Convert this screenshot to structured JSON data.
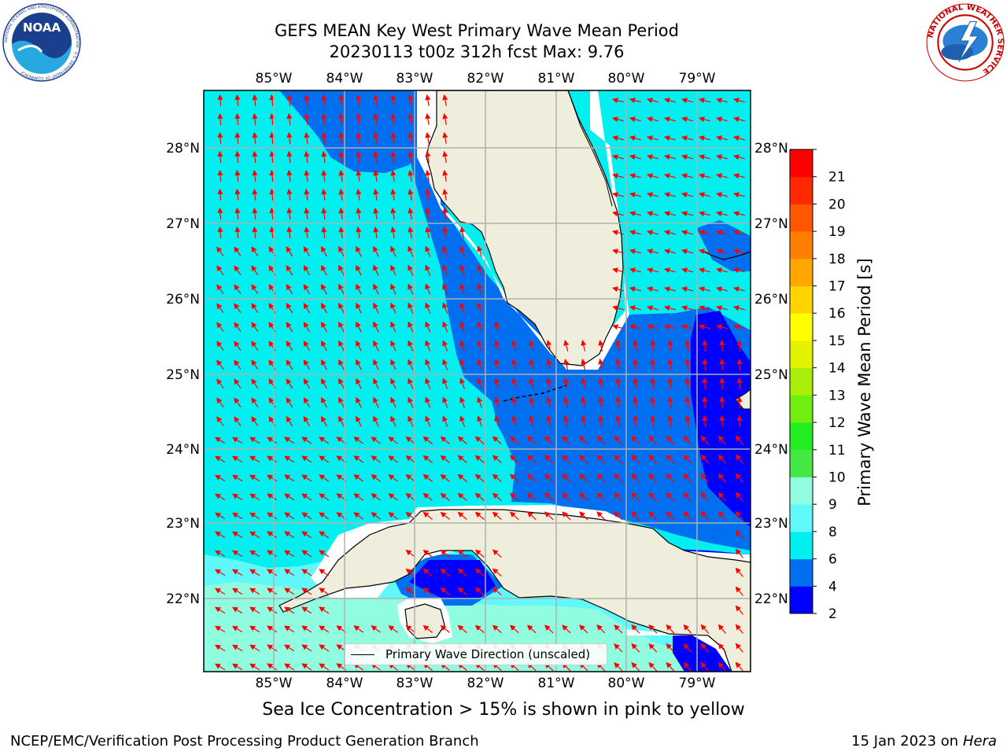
{
  "title": {
    "line1": "GEFS MEAN Key West Primary Wave Mean Period",
    "line2": "20230113 t00z 312h fcst   Max: 9.76"
  },
  "logos": {
    "left": "noaa-logo",
    "left_text": "NOAA",
    "left_ring_text": "NATIONAL OCEANIC AND ATMOSPHERIC ADMINISTRATION · U.S. DEPARTMENT OF COMMERCE",
    "right": "nws-logo",
    "right_ring_text": "NATIONAL WEATHER SERVICE"
  },
  "map": {
    "lon_labels": [
      "85°W",
      "84°W",
      "83°W",
      "82°W",
      "81°W",
      "80°W",
      "79°W"
    ],
    "lat_labels": [
      "28°N",
      "27°N",
      "26°N",
      "25°N",
      "24°N",
      "23°N",
      "22°N"
    ],
    "lon_range": [
      -86.0,
      -78.25
    ],
    "lat_range": [
      21.05,
      28.75
    ],
    "gridlines": true,
    "legend_label": "Primary Wave Direction (unscaled)",
    "arrow_color": "#ff0000",
    "land_color": "#efeedc"
  },
  "colorbar": {
    "label": "Primary Wave Mean Period [s]",
    "ticks": [
      "2",
      "4",
      "6",
      "8",
      "9",
      "10",
      "11",
      "12",
      "13",
      "14",
      "15",
      "16",
      "17",
      "18",
      "19",
      "20",
      "21"
    ],
    "levels": [
      2,
      4,
      6,
      8,
      9,
      10,
      11,
      12,
      13,
      14,
      15,
      16,
      17,
      18,
      19,
      20,
      21
    ],
    "colors": [
      "#0000ff",
      "#0070f0",
      "#00f0f0",
      "#60f8f8",
      "#90fce0",
      "#44e844",
      "#22ee22",
      "#70ee10",
      "#a8ee08",
      "#e2f200",
      "#ffff00",
      "#ffd400",
      "#ffa600",
      "#ff8000",
      "#ff5800",
      "#ff2800",
      "#ff0000"
    ]
  },
  "subtitle": "Sea Ice Concentration > 15% is shown in pink to yellow",
  "footer": {
    "left": "NCEP/EMC/Verification Post Processing Product Generation Branch",
    "right_prefix": "15 Jan 2023 on ",
    "right_host": "Hera"
  }
}
